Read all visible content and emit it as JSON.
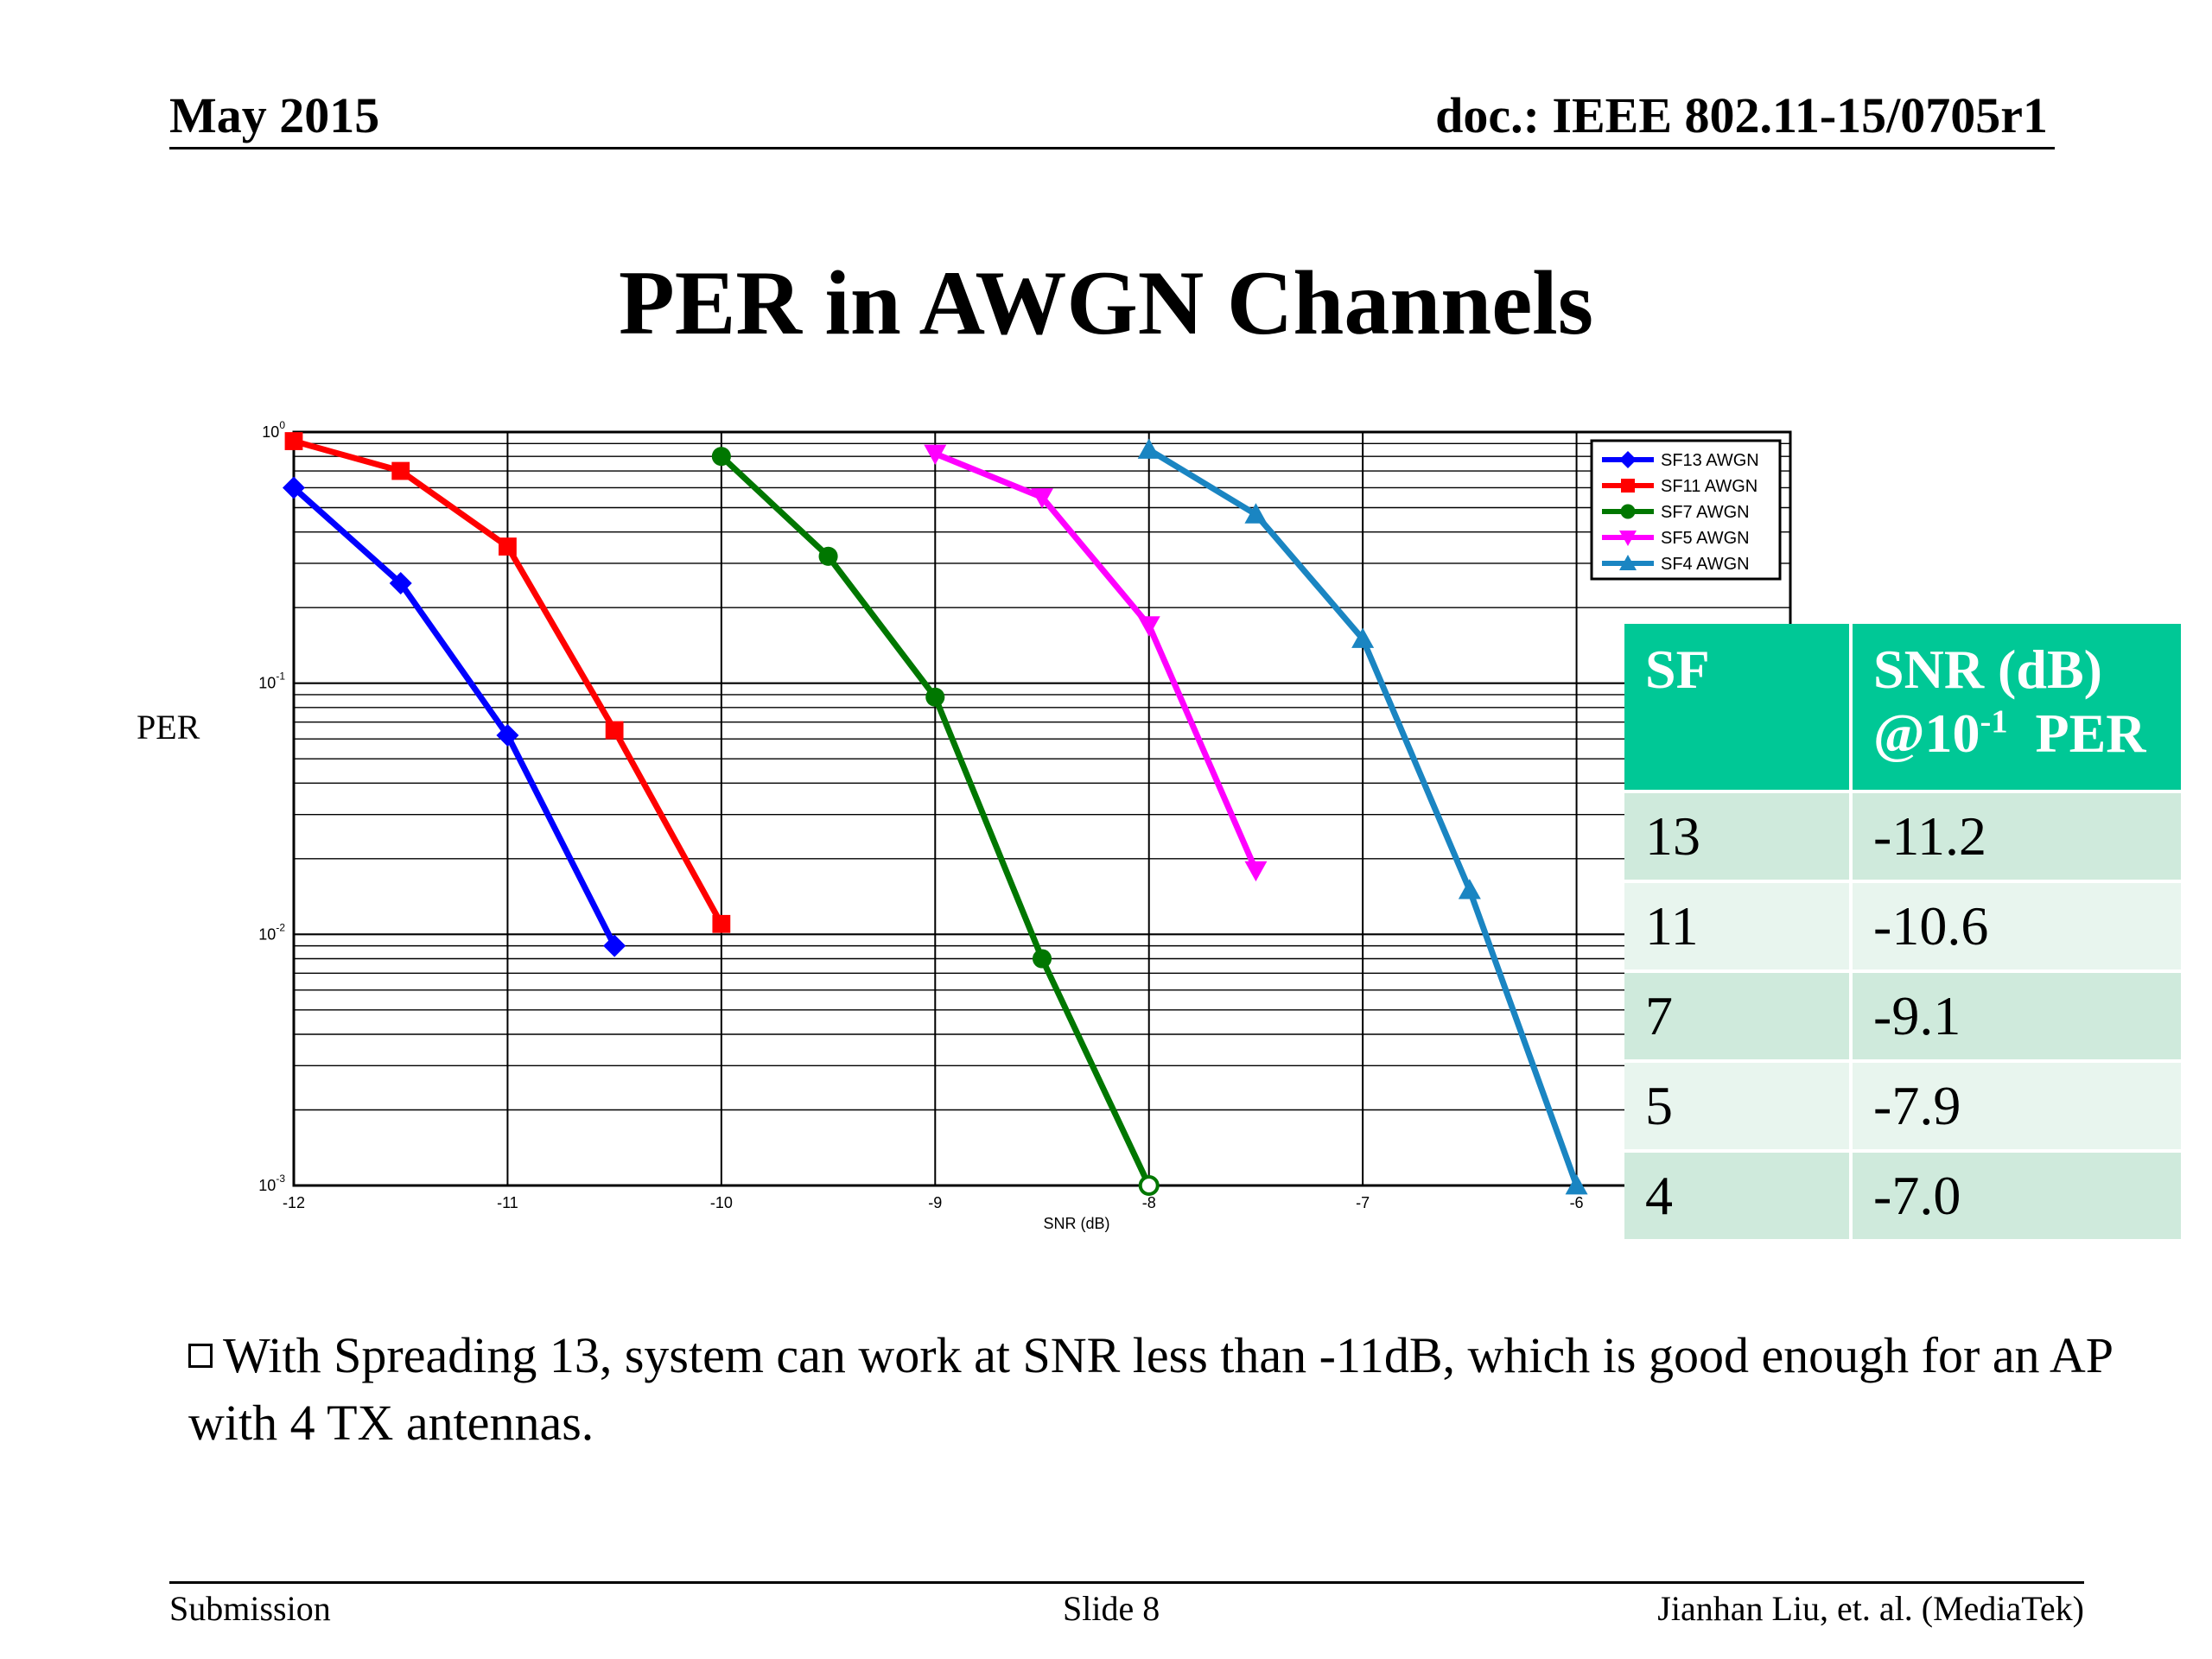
{
  "header": {
    "date": "May 2015",
    "doc": "doc.: IEEE 802.11-15/0705r1"
  },
  "title": "PER in AWGN Channels",
  "footer": {
    "left": "Submission",
    "center": "Slide 8",
    "right": "Jianhan Liu, et. al. (MediaTek)"
  },
  "bullet": "With Spreading 13, system can work at SNR less than -11dB, which is good enough for an AP with 4 TX antennas.",
  "table": {
    "header_sf": "SF",
    "header_snr_line1": "SNR (dB)",
    "header_snr_prefix": "@10",
    "header_snr_exp": "-1",
    "header_snr_suffix": "PER",
    "rows": [
      {
        "sf": "13",
        "snr": "-11.2"
      },
      {
        "sf": "11",
        "snr": "-10.6"
      },
      {
        "sf": "7",
        "snr": "-9.1"
      },
      {
        "sf": "5",
        "snr": "-7.9"
      },
      {
        "sf": "4",
        "snr": "-7.0"
      }
    ]
  },
  "chart_data": {
    "type": "line",
    "xlabel": "SNR (dB)",
    "ylabel": "PER",
    "xlim": [
      -12,
      -5
    ],
    "ylim": [
      0.001,
      1
    ],
    "yscale": "log",
    "grid": true,
    "legend_position": "top-right",
    "x_ticks": [
      "-12",
      "-11",
      "-10",
      "-9",
      "-8",
      "-7",
      "-6"
    ],
    "y_ticks": [
      {
        "base": "10",
        "exp": "0"
      },
      {
        "base": "10",
        "exp": "-1"
      },
      {
        "base": "10",
        "exp": "-2"
      },
      {
        "base": "10",
        "exp": "-3"
      }
    ],
    "series": [
      {
        "name": "SF13 AWGN",
        "color": "#0000ff",
        "marker": "diamond",
        "x": [
          -12,
          -11.5,
          -11,
          -10.5
        ],
        "y": [
          0.6,
          0.25,
          0.062,
          0.009
        ]
      },
      {
        "name": "SF11 AWGN",
        "color": "#ff0000",
        "marker": "square",
        "x": [
          -12,
          -11.5,
          -11,
          -10.5,
          -10
        ],
        "y": [
          0.92,
          0.7,
          0.35,
          0.065,
          0.011
        ]
      },
      {
        "name": "SF7 AWGN",
        "color": "#007700",
        "marker": "circle",
        "x": [
          -10,
          -9.5,
          -9,
          -8.5,
          -8
        ],
        "y": [
          0.8,
          0.32,
          0.088,
          0.008,
          0.001
        ]
      },
      {
        "name": "SF5 AWGN",
        "color": "#ff00ff",
        "marker": "triangle-down",
        "x": [
          -9,
          -8.5,
          -8,
          -7.5
        ],
        "y": [
          0.82,
          0.55,
          0.17,
          0.018
        ]
      },
      {
        "name": "SF4 AWGN",
        "color": "#1a85c2",
        "marker": "triangle-up",
        "x": [
          -8,
          -7.5,
          -7,
          -6.5,
          -6
        ],
        "y": [
          0.85,
          0.47,
          0.15,
          0.015,
          0.001
        ]
      }
    ]
  }
}
